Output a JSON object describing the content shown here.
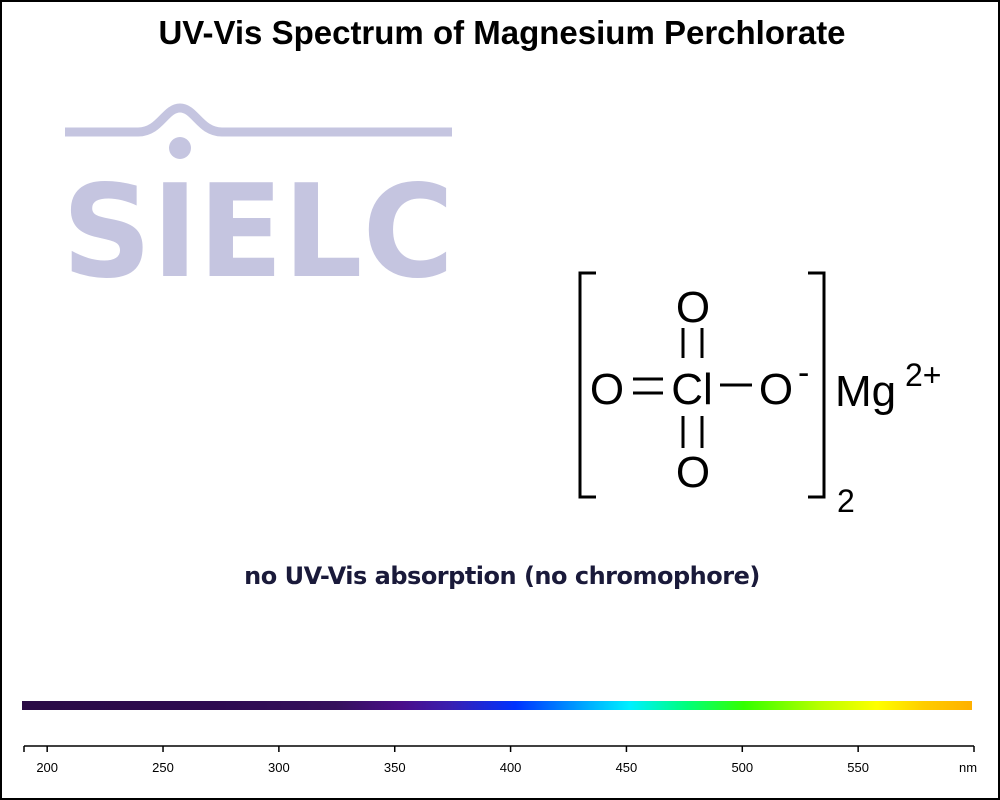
{
  "title": "UV-Vis Spectrum of Magnesium Perchlorate",
  "logo": {
    "text": "SIELC",
    "color": "#c5c5e0"
  },
  "structure": {
    "atoms": {
      "oxygen": "O",
      "chlorine": "Cl",
      "charge_minus": "-",
      "cation": "Mg",
      "cation_charge": "2+",
      "subscript": "2"
    }
  },
  "note": "no UV-Vis absorption (no chromophore)",
  "chart_data": {
    "type": "line",
    "title": "UV-Vis Spectrum of Magnesium Perchlorate",
    "annotation": "no UV-Vis absorption (no chromophore)",
    "xlabel": "",
    "ylabel": "",
    "x_unit": "nm",
    "xlim": [
      190,
      600
    ],
    "x_ticks": [
      200,
      250,
      300,
      350,
      400,
      450,
      500,
      550
    ],
    "series": [],
    "grid": false,
    "legend": "none"
  }
}
